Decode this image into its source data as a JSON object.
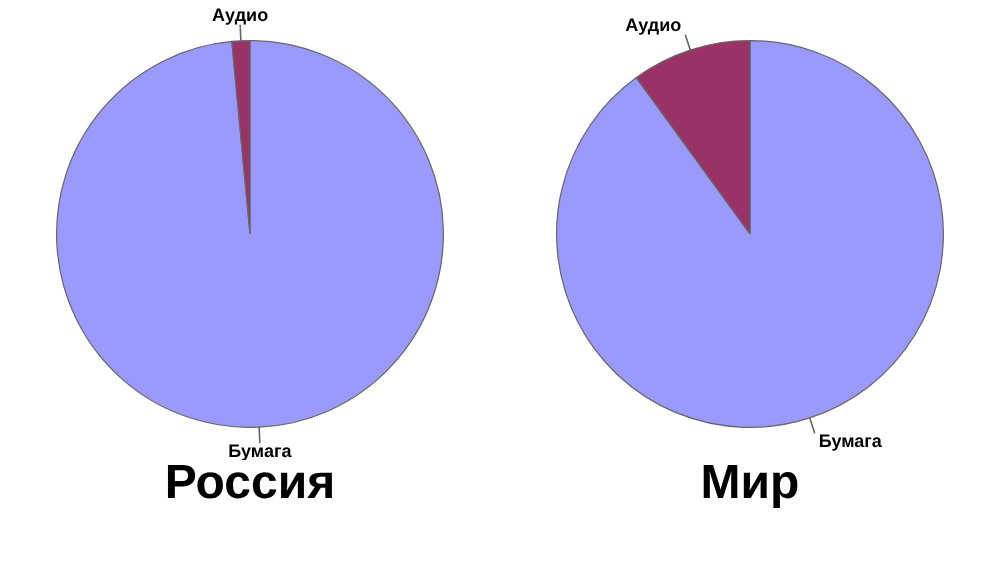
{
  "chart_data": [
    {
      "type": "pie",
      "title": "Россия",
      "categories": [
        "Бумага",
        "Аудио"
      ],
      "values": [
        98.5,
        1.5
      ],
      "colors": [
        "#9999ff",
        "#993366"
      ],
      "legend": false
    },
    {
      "type": "pie",
      "title": "Мир",
      "categories": [
        "Бумага",
        "Аудио"
      ],
      "values": [
        90,
        10
      ],
      "colors": [
        "#9999ff",
        "#993366"
      ],
      "legend": false
    }
  ]
}
